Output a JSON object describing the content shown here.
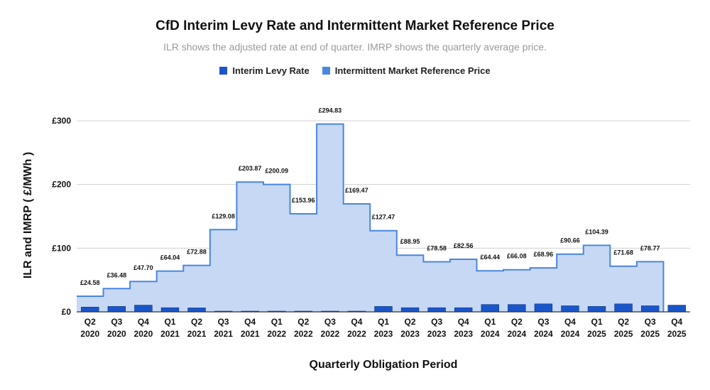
{
  "chart_data": {
    "type": "area",
    "title": "CfD Interim Levy Rate and Intermittent Market Reference Price",
    "subtitle": "ILR shows the adjusted rate at end of quarter. IMRP shows the quarterly average price.",
    "xlabel": "Quarterly Obligation Period",
    "ylabel": "ILR and IMRP  ( £/MWh )",
    "ylim": [
      0,
      330
    ],
    "yticks": [
      0,
      100,
      200,
      300
    ],
    "ytick_labels": [
      "£0",
      "£100",
      "£200",
      "£300"
    ],
    "grid": true,
    "legend_position": "top-center",
    "categories": [
      {
        "q": "Q2",
        "y": "2020"
      },
      {
        "q": "Q3",
        "y": "2020"
      },
      {
        "q": "Q4",
        "y": "2020"
      },
      {
        "q": "Q1",
        "y": "2021"
      },
      {
        "q": "Q2",
        "y": "2021"
      },
      {
        "q": "Q3",
        "y": "2021"
      },
      {
        "q": "Q4",
        "y": "2021"
      },
      {
        "q": "Q1",
        "y": "2022"
      },
      {
        "q": "Q2",
        "y": "2022"
      },
      {
        "q": "Q3",
        "y": "2022"
      },
      {
        "q": "Q4",
        "y": "2022"
      },
      {
        "q": "Q1",
        "y": "2023"
      },
      {
        "q": "Q2",
        "y": "2023"
      },
      {
        "q": "Q3",
        "y": "2023"
      },
      {
        "q": "Q4",
        "y": "2023"
      },
      {
        "q": "Q1",
        "y": "2024"
      },
      {
        "q": "Q2",
        "y": "2024"
      },
      {
        "q": "Q3",
        "y": "2024"
      },
      {
        "q": "Q4",
        "y": "2024"
      },
      {
        "q": "Q1",
        "y": "2025"
      },
      {
        "q": "Q2",
        "y": "2025"
      },
      {
        "q": "Q3",
        "y": "2025"
      },
      {
        "q": "Q4",
        "y": "2025"
      }
    ],
    "series": [
      {
        "name": "Interim Levy Rate",
        "type": "bar",
        "color": "#1a56c9",
        "values": [
          7.5,
          8.5,
          10.5,
          6.5,
          6.2,
          0.3,
          0.3,
          0.3,
          0.3,
          0.3,
          0.3,
          8.5,
          6.5,
          6.5,
          6.5,
          11.5,
          11.5,
          12.5,
          9.5,
          8.5,
          12.5,
          9.5,
          10.5
        ]
      },
      {
        "name": "Intermittent Market Reference Price",
        "type": "step-area",
        "color": "#4a86e0",
        "fill": "#c7d8f4",
        "values": [
          24.58,
          36.48,
          47.7,
          64.04,
          72.88,
          129.08,
          203.87,
          200.09,
          153.96,
          294.83,
          169.47,
          127.47,
          88.95,
          78.58,
          82.56,
          64.44,
          66.08,
          68.96,
          90.66,
          104.39,
          71.68,
          78.77,
          null
        ],
        "labels": [
          "£24.58",
          "£36.48",
          "£47.70",
          "£64.04",
          "£72.88",
          "£129.08",
          "£203.87",
          "£200.09",
          "£153.96",
          "£294.83",
          "£169.47",
          "£127.47",
          "£88.95",
          "£78.58",
          "£82.56",
          "£64.44",
          "£66.08",
          "£68.96",
          "£90.66",
          "£104.39",
          "£71.68",
          "£78.77",
          null
        ]
      }
    ]
  }
}
